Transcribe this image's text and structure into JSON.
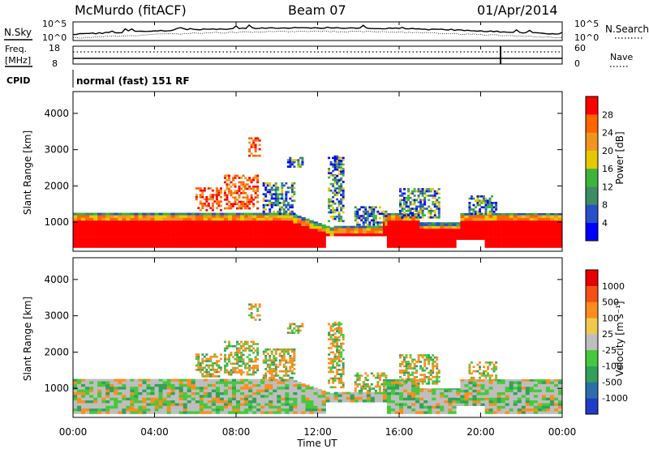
{
  "header": {
    "station": "McMurdo (fitACF)",
    "beam": "Beam 07",
    "date": "01/Apr/2014"
  },
  "summary_panels": {
    "nsky_label": "N.Sky",
    "nsearch_label": "N.Search",
    "freq_label_top": "Freq.",
    "freq_label_unit": "[MHz]",
    "nave_label": "Nave",
    "cpid_label": "CPID",
    "cpid_value": "normal (fast) 151 RF",
    "noise_ticks": {
      "top": "10^5",
      "bottom": "10^0"
    },
    "freq_ticks": [
      "18",
      "8"
    ],
    "nave_ticks": [
      "60",
      "0"
    ]
  },
  "chart_data": [
    {
      "type": "heatmap",
      "name": "power",
      "ylabel": "Slant Range [km]",
      "xlabel": "",
      "colorbar_label": "Power [dB]",
      "colorbar_ticks": [
        "28",
        "24",
        "20",
        "16",
        "12",
        "8",
        "4"
      ],
      "colors": [
        "#0000ff",
        "#2850c8",
        "#3c8c64",
        "#3cb43c",
        "#e6c800",
        "#f0961e",
        "#ff6400",
        "#ff0000"
      ],
      "ylim": [
        200,
        4600
      ],
      "y_ticks": [
        "1000",
        "2000",
        "3000",
        "4000"
      ],
      "x_ticks": [
        "00:00",
        "04:00",
        "08:00",
        "12:00",
        "16:00",
        "20:00",
        "00:00"
      ]
    },
    {
      "type": "heatmap",
      "name": "velocity",
      "ylabel": "Slant Range [km]",
      "xlabel": "Time UT",
      "colorbar_label": "Velocity [m s⁻¹]",
      "colorbar_ticks": [
        "1000",
        "500",
        "100",
        "25",
        "-25",
        "-100",
        "-500",
        "-1000"
      ],
      "colors": [
        "#1e3cc8",
        "#2d6eaa",
        "#32a05a",
        "#46c83c",
        "#bebebe",
        "#f0c850",
        "#ff8c1e",
        "#f55014",
        "#e60000"
      ],
      "ylim": [
        200,
        4600
      ],
      "y_ticks": [
        "1000",
        "2000",
        "3000",
        "4000"
      ],
      "x_ticks": [
        "00:00",
        "04:00",
        "08:00",
        "12:00",
        "16:00",
        "20:00",
        "00:00"
      ]
    }
  ]
}
